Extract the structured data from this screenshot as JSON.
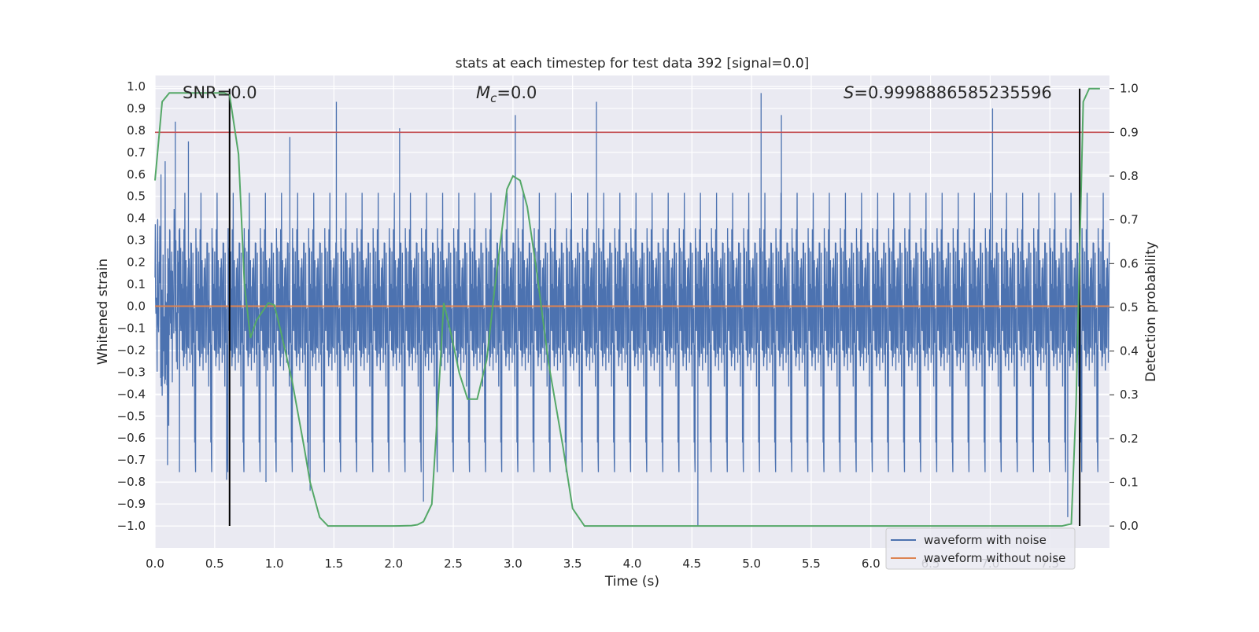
{
  "chart_data": {
    "type": "line",
    "title": "stats at each timestep for test data 392 [signal=0.0]",
    "xlabel": "Time (s)",
    "ylabel_left": "Whitened strain",
    "ylabel_right": "Detection probability",
    "xlim": [
      0.0,
      8.0
    ],
    "ylim_left": [
      -1.1,
      1.05
    ],
    "ylim_right": [
      -0.05,
      1.03
    ],
    "x_ticks": [
      "0.0",
      "0.5",
      "1.0",
      "1.5",
      "2.0",
      "2.5",
      "3.0",
      "3.5",
      "4.0",
      "4.5",
      "5.0",
      "5.5",
      "6.0",
      "6.5",
      "7.0",
      "7.5"
    ],
    "y_left_ticks": [
      "1.0",
      "0.9",
      "0.8",
      "0.7",
      "0.6",
      "0.5",
      "0.4",
      "0.3",
      "0.2",
      "0.1",
      "0.0",
      "−0.1",
      "−0.2",
      "−0.3",
      "−0.4",
      "−0.5",
      "−0.6",
      "−0.7",
      "−0.8",
      "−0.9",
      "−1.0"
    ],
    "y_right_ticks": [
      "1.0",
      "0.9",
      "0.8",
      "0.7",
      "0.6",
      "0.5",
      "0.4",
      "0.3",
      "0.2",
      "0.1",
      "0.0"
    ],
    "grid": true,
    "annotations": {
      "snr": "SNR=0.0",
      "mc_symbol": "M",
      "mc_sub": "c",
      "mc_value": "=0.0",
      "s_symbol": "S",
      "s_value": "=0.9998886585235596"
    },
    "legend": {
      "placement": "lower-right",
      "entries": [
        "waveform with noise",
        "waveform without noise"
      ]
    },
    "threshold_line": {
      "axis": "right",
      "value": 0.9,
      "color": "#c44e52"
    },
    "vertical_markers_time": [
      0.625,
      7.75
    ],
    "series": [
      {
        "name": "waveform with noise",
        "axis": "left",
        "color": "#4c72b0",
        "description": "noise-only whitened strain sampled over 0–8 s",
        "typical_amplitude": 0.47,
        "notable_extremes": [
          {
            "t": 0.05,
            "v": 0.6
          },
          {
            "t": 0.17,
            "v": 0.84
          },
          {
            "t": 0.28,
            "v": 0.75
          },
          {
            "t": 0.6,
            "v": -0.79
          },
          {
            "t": 0.93,
            "v": -0.8
          },
          {
            "t": 1.13,
            "v": 0.77
          },
          {
            "t": 1.3,
            "v": -0.84
          },
          {
            "t": 1.52,
            "v": 0.93
          },
          {
            "t": 2.05,
            "v": 0.81
          },
          {
            "t": 2.25,
            "v": -0.89
          },
          {
            "t": 3.02,
            "v": 0.87
          },
          {
            "t": 3.7,
            "v": 0.93
          },
          {
            "t": 4.55,
            "v": -1.0
          },
          {
            "t": 5.08,
            "v": 0.97
          },
          {
            "t": 5.25,
            "v": 0.87
          },
          {
            "t": 7.02,
            "v": 0.9
          },
          {
            "t": 7.65,
            "v": -0.96
          }
        ]
      },
      {
        "name": "waveform without noise",
        "axis": "left",
        "color": "#dd8452",
        "constant_value": 0.0
      },
      {
        "name": "detection probability",
        "axis": "right",
        "color": "#55a868",
        "x": [
          0.0,
          0.06,
          0.12,
          0.2,
          0.3,
          0.4,
          0.5,
          0.58,
          0.625,
          0.7,
          0.75,
          0.8,
          0.85,
          0.95,
          1.0,
          1.05,
          1.15,
          1.25,
          1.3,
          1.38,
          1.45,
          1.6,
          1.8,
          2.0,
          2.15,
          2.2,
          2.25,
          2.32,
          2.37,
          2.42,
          2.48,
          2.55,
          2.62,
          2.7,
          2.78,
          2.85,
          2.95,
          3.0,
          3.06,
          3.12,
          3.2,
          3.3,
          3.42,
          3.5,
          3.6,
          4.0,
          5.0,
          6.0,
          7.0,
          7.4,
          7.6,
          7.68,
          7.72,
          7.78,
          7.83,
          7.87,
          7.92
        ],
        "y": [
          0.79,
          0.97,
          0.99,
          0.99,
          0.99,
          0.99,
          0.99,
          0.99,
          0.985,
          0.85,
          0.55,
          0.43,
          0.47,
          0.51,
          0.505,
          0.45,
          0.33,
          0.18,
          0.1,
          0.02,
          0.0,
          0.0,
          0.0,
          0.0,
          0.001,
          0.003,
          0.01,
          0.05,
          0.27,
          0.51,
          0.44,
          0.35,
          0.29,
          0.29,
          0.38,
          0.55,
          0.77,
          0.8,
          0.79,
          0.73,
          0.58,
          0.37,
          0.18,
          0.04,
          0.0,
          0.0,
          0.0,
          0.0,
          0.0,
          0.0,
          0.0,
          0.005,
          0.28,
          0.97,
          1.0,
          1.0,
          1.0
        ]
      }
    ]
  }
}
